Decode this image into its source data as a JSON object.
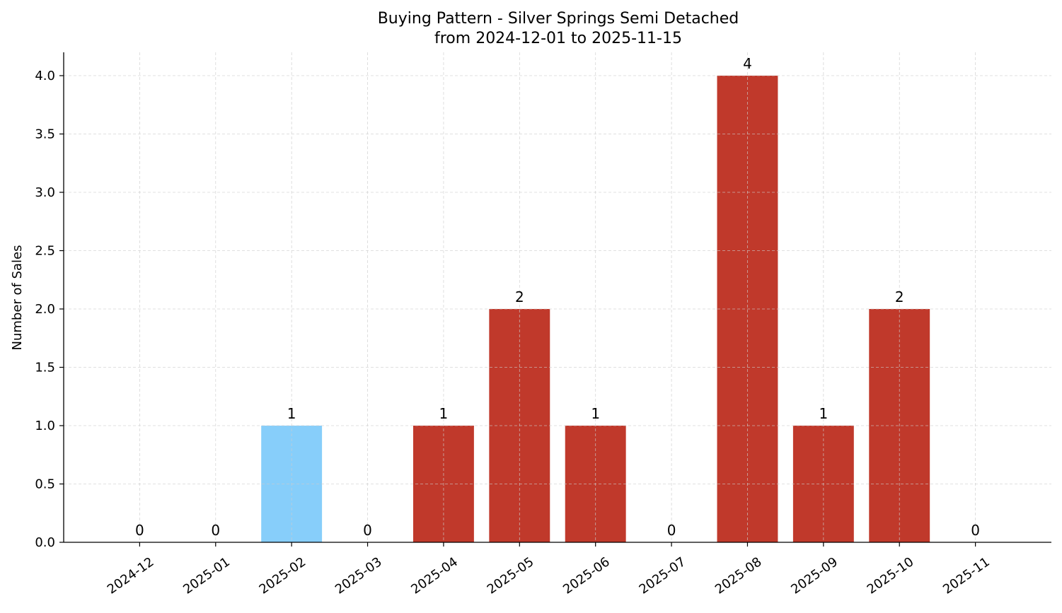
{
  "chart_data": {
    "type": "bar",
    "title": "Buying Pattern - Silver Springs Semi Detached",
    "subtitle": "from 2024-12-01 to 2025-11-15",
    "xlabel": "",
    "ylabel": "Number of Sales",
    "categories": [
      "2024-12",
      "2025-01",
      "2025-02",
      "2025-03",
      "2025-04",
      "2025-05",
      "2025-06",
      "2025-07",
      "2025-08",
      "2025-09",
      "2025-10",
      "2025-11"
    ],
    "values": [
      0,
      0,
      1,
      0,
      1,
      2,
      1,
      0,
      4,
      1,
      2,
      0
    ],
    "bar_colors": [
      "#c0392b",
      "#c0392b",
      "#87cefa",
      "#c0392b",
      "#c0392b",
      "#c0392b",
      "#c0392b",
      "#c0392b",
      "#c0392b",
      "#c0392b",
      "#c0392b",
      "#c0392b"
    ],
    "ylim": [
      0,
      4.2
    ],
    "yticks": [
      "0.0",
      "0.5",
      "1.0",
      "1.5",
      "2.0",
      "2.5",
      "3.0",
      "3.5",
      "4.0"
    ],
    "grid": true,
    "legend": "none"
  }
}
